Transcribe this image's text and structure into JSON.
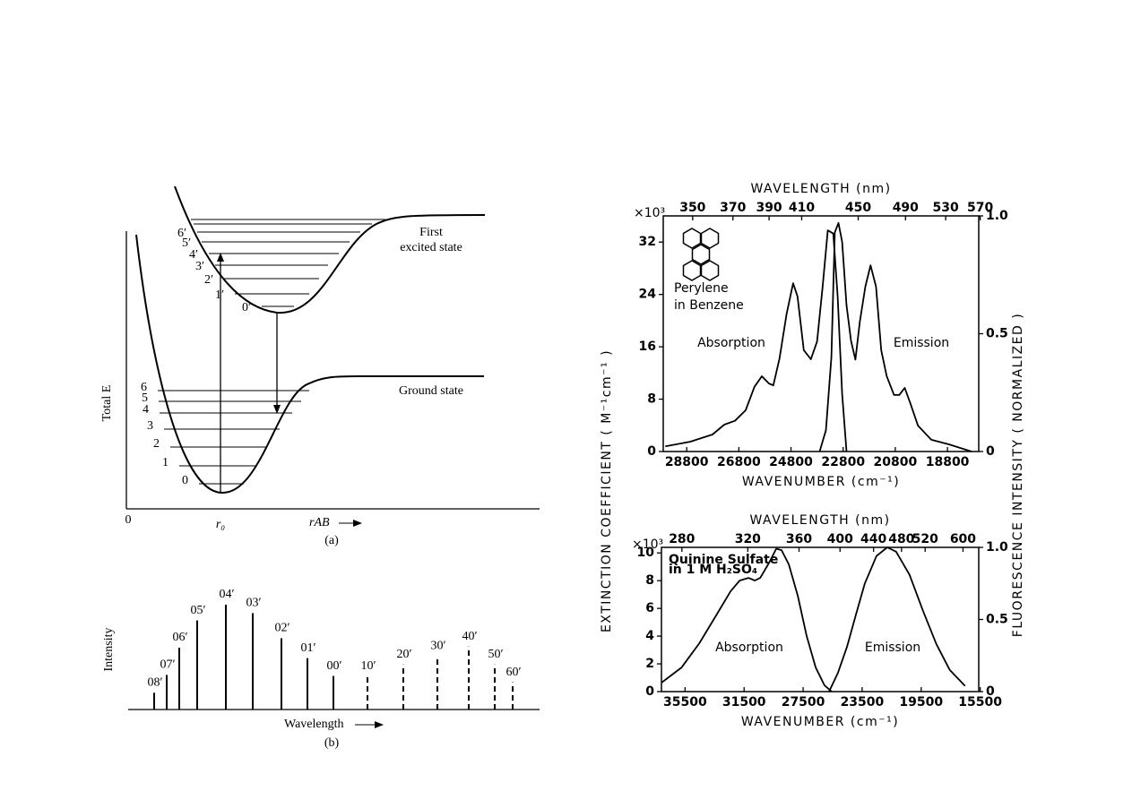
{
  "diagram": {
    "y_label": "Total E",
    "x_origin": "0",
    "r0": "r₀",
    "x_label": "rAB",
    "caption": "(a)",
    "ground_label": "Ground state",
    "excited_label": [
      "First",
      "excited state"
    ],
    "ground_levels": [
      "0",
      "1",
      "2",
      "3",
      "4",
      "5",
      "6"
    ],
    "excited_levels": [
      "0′",
      "1′",
      "2′",
      "3′",
      "4′",
      "5′",
      "6′"
    ]
  },
  "chart_data": [
    {
      "type": "stick",
      "y_label": "Intensity",
      "x_label": "Wavelength",
      "caption": "(b)",
      "color": "#000000",
      "categories": [
        "08′",
        "07′",
        "06′",
        "05′",
        "04′",
        "03′",
        "02′",
        "01′",
        "00′",
        "10′",
        "20′",
        "30′",
        "40′",
        "50′",
        "60′"
      ],
      "values": [
        0.16,
        0.33,
        0.59,
        0.85,
        1,
        0.92,
        0.68,
        0.49,
        0.32,
        0.32,
        0.43,
        0.51,
        0.6,
        0.43,
        0.26
      ],
      "styles": [
        "solid",
        "solid",
        "solid",
        "solid",
        "solid",
        "solid",
        "solid",
        "solid",
        "solid",
        "dashed",
        "dashed",
        "dashed",
        "dashed",
        "dashed",
        "dashed"
      ]
    },
    {
      "type": "line",
      "title": "WAVELENGTH (nm)",
      "x_label": "WAVENUMBER (cm⁻¹)",
      "annotation": [
        "Perylene",
        "in Benzene"
      ],
      "y_multiplier": "×10³",
      "xlim": [
        29700,
        17600
      ],
      "xticks": [
        28800,
        26800,
        24800,
        22800,
        20800,
        18800
      ],
      "x2ticks": [
        350,
        370,
        390,
        410,
        450,
        490,
        530,
        570
      ],
      "ylim": [
        0,
        36
      ],
      "yticks": [
        0,
        8,
        16,
        24,
        32
      ],
      "y2lim": [
        0,
        1
      ],
      "y2ticks": [
        0,
        0.5,
        {
          "value": 1,
          "label": "1.0"
        }
      ],
      "series": [
        {
          "name": "Absorption",
          "color": "#000000",
          "x": [
            29620,
            28660,
            27810,
            27360,
            26950,
            26540,
            26200,
            25920,
            25650,
            25480,
            25240,
            24970,
            24720,
            24550,
            24310,
            24040,
            23800,
            23590,
            23390,
            23180,
            23010,
            22840,
            22670
          ],
          "values": [
            0.8,
            1.5,
            2.6,
            4.1,
            4.7,
            6.3,
            9.9,
            11.5,
            10.4,
            10.1,
            14.2,
            21,
            25.7,
            23.7,
            15.5,
            14.1,
            16.8,
            25,
            33.8,
            33.3,
            23.7,
            8.8,
            0
          ]
        },
        {
          "name": "Emission",
          "color": "#000000",
          "axis": "y2",
          "x": [
            23700,
            23460,
            23250,
            23120,
            22980,
            22840,
            22670,
            22500,
            22330,
            22160,
            21950,
            21750,
            21540,
            21340,
            21130,
            20850,
            20650,
            20440,
            20240,
            19930,
            19420,
            18730,
            17880
          ],
          "values": [
            0,
            0.09,
            0.4,
            0.93,
            0.97,
            0.89,
            0.62,
            0.47,
            0.39,
            0.55,
            0.7,
            0.79,
            0.7,
            0.43,
            0.32,
            0.24,
            0.24,
            0.27,
            0.21,
            0.11,
            0.05,
            0.03,
            0
          ]
        }
      ]
    },
    {
      "type": "line",
      "title": "WAVELENGTH (nm)",
      "x_label": "WAVENUMBER (cm⁻¹)",
      "annotation": [
        "Quinine Sulfate",
        "in 1 M H₂SO₄"
      ],
      "y_multiplier": "×10³",
      "xlim": [
        37100,
        15600
      ],
      "xticks": [
        35500,
        31500,
        27500,
        23500,
        19500,
        15500
      ],
      "x2ticks": [
        280,
        320,
        360,
        400,
        440,
        480,
        520,
        600
      ],
      "ylim": [
        0,
        10.4
      ],
      "yticks": [
        0,
        2,
        4,
        6,
        8,
        10
      ],
      "y2lim": [
        0,
        1
      ],
      "y2ticks": [
        0,
        0.5,
        {
          "value": 1,
          "label": "1.0"
        }
      ],
      "series": [
        {
          "name": "Absorption",
          "color": "#000000",
          "x": [
            37080,
            35740,
            34530,
            33320,
            32410,
            31800,
            31200,
            30770,
            30410,
            29800,
            29320,
            28960,
            28470,
            27860,
            27260,
            26650,
            26050,
            25560
          ],
          "values": [
            0.65,
            1.74,
            3.49,
            5.62,
            7.24,
            8.01,
            8.2,
            8.01,
            8.2,
            9.3,
            10.3,
            10.2,
            9.17,
            6.91,
            4.01,
            1.74,
            0.45,
            0
          ]
        },
        {
          "name": "Emission",
          "color": "#000000",
          "axis": "y2",
          "x": [
            25740,
            25140,
            24530,
            23930,
            23320,
            22530,
            21800,
            21200,
            20290,
            19380,
            18470,
            17560,
            16530
          ],
          "values": [
            0,
            0.13,
            0.31,
            0.53,
            0.75,
            0.94,
            1,
            0.97,
            0.81,
            0.56,
            0.33,
            0.15,
            0.04
          ]
        }
      ]
    }
  ],
  "shared_axes": {
    "y_label": "EXTINCTION COEFFICIENT ( M⁻¹cm⁻¹ )",
    "y2_label": "FLUORESCENCE INTENSITY ( NORMALIZED )"
  }
}
